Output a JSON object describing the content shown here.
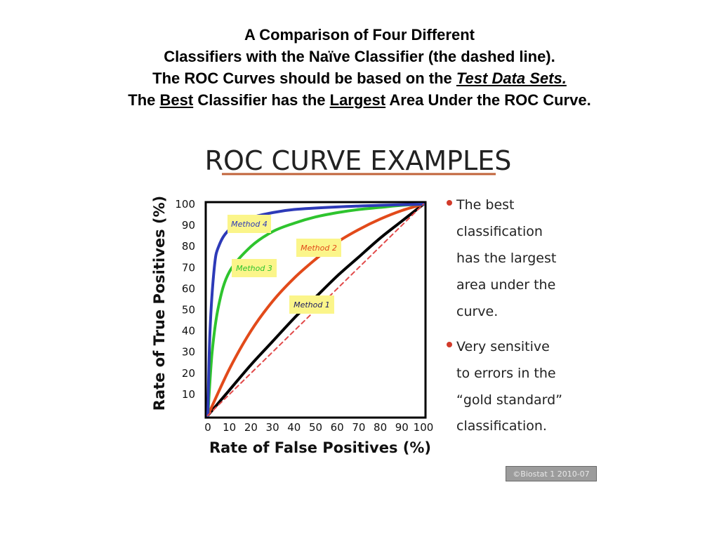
{
  "header": {
    "line1": "A Comparison of Four Different",
    "line2": "Classifiers with the Naïve Classifier (the dashed line).",
    "line3_pre": "The ROC Curves should be based on the ",
    "line3_em": "Test Data Sets.",
    "line4_a": "The ",
    "line4_b": "Best",
    "line4_c": " Classifier has the ",
    "line4_d": "Largest",
    "line4_e": " Area Under the ROC Curve."
  },
  "chart_data": {
    "type": "line",
    "title": "ROC CURVE EXAMPLES",
    "xlabel": "Rate of False Positives (%)",
    "ylabel": "Rate of True Positives (%)",
    "xlim": [
      0,
      100
    ],
    "ylim": [
      0,
      100
    ],
    "x_ticks": [
      "0",
      "10",
      "20",
      "30",
      "40",
      "50",
      "60",
      "70",
      "80",
      "90",
      "100"
    ],
    "y_ticks": [
      "10",
      "20",
      "30",
      "40",
      "50",
      "60",
      "70",
      "80",
      "90",
      "100"
    ],
    "grid": false,
    "series": [
      {
        "name": "Method 1",
        "color": "#000000",
        "x": [
          0,
          10,
          20,
          30,
          40,
          50,
          60,
          70,
          80,
          90,
          100
        ],
        "y": [
          0,
          12,
          24,
          35,
          46,
          56,
          66,
          75,
          84,
          92,
          100
        ]
      },
      {
        "name": "Method 2",
        "color": "#e24a1a",
        "x": [
          0,
          10,
          20,
          30,
          40,
          50,
          60,
          70,
          80,
          90,
          100
        ],
        "y": [
          0,
          22,
          40,
          54,
          65,
          74,
          82,
          88,
          93,
          97,
          100
        ]
      },
      {
        "name": "Method 3",
        "color": "#2ec42e",
        "x": [
          0,
          2,
          5,
          10,
          20,
          30,
          40,
          50,
          60,
          70,
          80,
          90,
          100
        ],
        "y": [
          0,
          30,
          52,
          68,
          80,
          87,
          91,
          94,
          96,
          97.5,
          98.5,
          99.5,
          100
        ]
      },
      {
        "name": "Method 4",
        "color": "#2d3ab8",
        "x": [
          0,
          1,
          3,
          5,
          10,
          20,
          30,
          40,
          60,
          80,
          100
        ],
        "y": [
          0,
          40,
          70,
          80,
          88,
          93.5,
          96,
          97.5,
          98.7,
          99.5,
          100
        ]
      },
      {
        "name": "",
        "color": "#e24a4a",
        "dashed": true,
        "x": [
          0,
          100
        ],
        "y": [
          0,
          100
        ]
      }
    ],
    "annotations": [
      "The best classification has the largest area under the curve.",
      "Very sensitive to errors in the “gold standard” classification."
    ]
  },
  "watermark": "©Biostat 1 2010-07"
}
